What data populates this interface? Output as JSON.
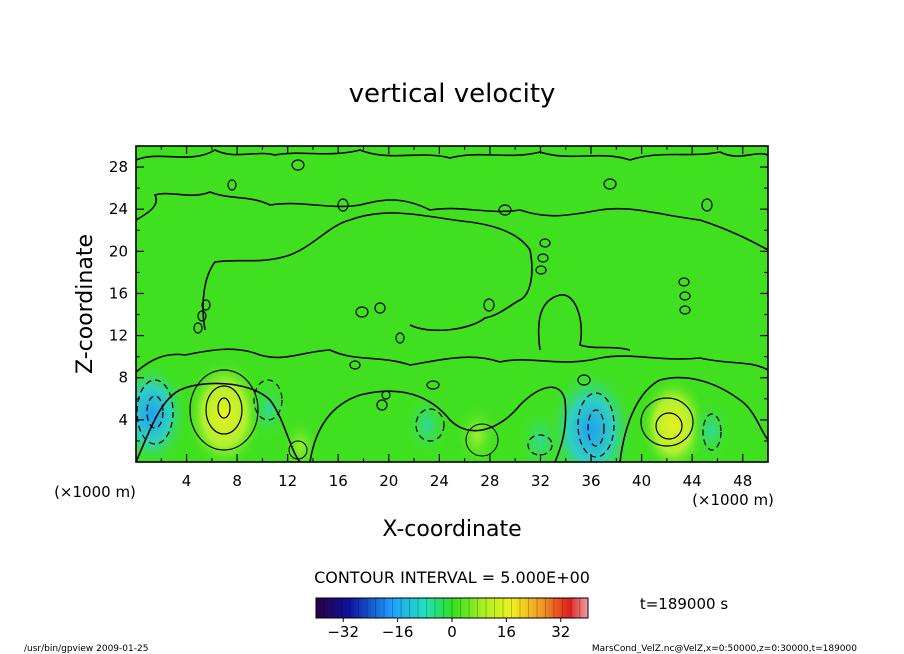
{
  "chart_data": {
    "type": "heatmap",
    "title": "vertical velocity",
    "xlabel": "X-coordinate",
    "ylabel": "Z-coordinate",
    "x_unit": "(×1000 m)",
    "y_unit": "(×1000 m)",
    "xlim": [
      0,
      50
    ],
    "ylim": [
      0,
      30
    ],
    "x_ticks": [
      4,
      8,
      12,
      16,
      20,
      24,
      28,
      32,
      36,
      40,
      44,
      48
    ],
    "y_ticks": [
      4,
      8,
      12,
      16,
      20,
      24,
      28
    ],
    "contour_interval_text": "CONTOUR INTERVAL = 5.000E+00",
    "time_text": "t=189000 s",
    "colorbar": {
      "ticks": [
        -32,
        -16,
        0,
        16,
        32
      ],
      "range": [
        -40,
        40
      ],
      "colormap": "rainbow"
    },
    "features": [
      {
        "kind": "updraft",
        "x": 7,
        "z": 4.5,
        "value": 15
      },
      {
        "kind": "updraft",
        "x": 42.5,
        "z": 3.5,
        "value": 12
      },
      {
        "kind": "updraft",
        "x": 27,
        "z": 2.5,
        "value": 6
      },
      {
        "kind": "updraft",
        "x": 13,
        "z": 1.5,
        "value": 4
      },
      {
        "kind": "downdraft",
        "x": 1.2,
        "z": 4.5,
        "value": -14
      },
      {
        "kind": "downdraft",
        "x": 36,
        "z": 3,
        "value": -18
      },
      {
        "kind": "downdraft",
        "x": 23,
        "z": 3.5,
        "value": -6
      },
      {
        "kind": "downdraft",
        "x": 10.5,
        "z": 5,
        "value": -5
      },
      {
        "kind": "downdraft",
        "x": 45.5,
        "z": 3,
        "value": -5
      },
      {
        "kind": "downdraft",
        "x": 32,
        "z": 2,
        "value": -6
      }
    ]
  },
  "footer": {
    "left": "/usr/bin/gpview   2009-01-25",
    "right": "MarsCond_VelZ.nc@VelZ,x=0:50000,z=0:30000,t=189000"
  }
}
